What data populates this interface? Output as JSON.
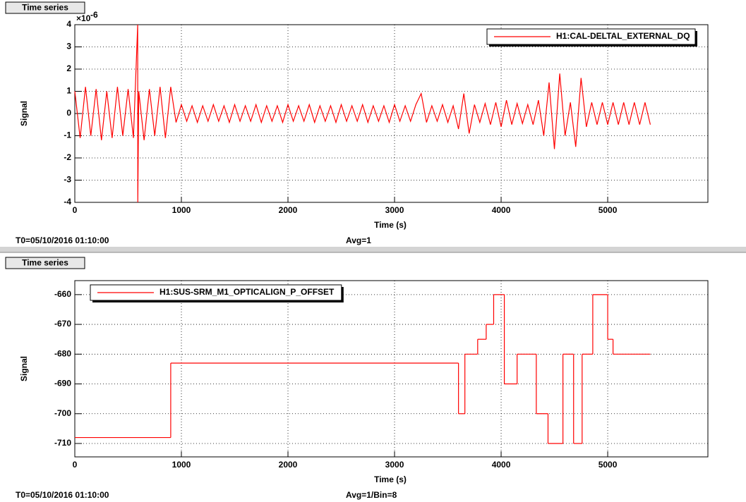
{
  "chart_data": [
    {
      "type": "line",
      "button": "Time series",
      "xlabel": "Time (s)",
      "ylabel": "Signal",
      "y_multiplier": {
        "base": "×10",
        "exponent": "-6"
      },
      "footer_left": "T0=05/10/2016 01:10:00",
      "footer_center": "Avg=1",
      "xlim": [
        0,
        5940
      ],
      "xticks": [
        0,
        1000,
        2000,
        3000,
        4000,
        5000
      ],
      "ylim": [
        -4,
        4
      ],
      "yticks": [
        -4,
        -3,
        -2,
        -1,
        0,
        1,
        2,
        3,
        4
      ],
      "grid": true,
      "legend": "upper right",
      "series": [
        {
          "name": "H1:CAL-DELTAL_EXTERNAL_DQ",
          "color": "#ff0000",
          "x": [
            0,
            50,
            100,
            150,
            200,
            250,
            300,
            350,
            400,
            450,
            500,
            550,
            590,
            591,
            600,
            650,
            700,
            750,
            800,
            850,
            900,
            950,
            1000,
            1050,
            1100,
            1150,
            1200,
            1250,
            1300,
            1350,
            1400,
            1450,
            1500,
            1550,
            1600,
            1650,
            1700,
            1750,
            1800,
            1850,
            1900,
            1950,
            2000,
            2050,
            2100,
            2150,
            2200,
            2250,
            2300,
            2350,
            2400,
            2450,
            2500,
            2550,
            2600,
            2650,
            2700,
            2750,
            2800,
            2850,
            2900,
            2950,
            3000,
            3050,
            3100,
            3150,
            3200,
            3250,
            3300,
            3350,
            3400,
            3450,
            3500,
            3550,
            3600,
            3650,
            3700,
            3750,
            3800,
            3850,
            3900,
            3950,
            4000,
            4050,
            4100,
            4150,
            4200,
            4250,
            4300,
            4350,
            4400,
            4450,
            4500,
            4550,
            4600,
            4650,
            4700,
            4750,
            4800,
            4850,
            4900,
            4950,
            5000,
            5050,
            5100,
            5150,
            5200,
            5250,
            5300,
            5350,
            5400
          ],
          "values": [
            1.0,
            -1.1,
            1.2,
            -1.0,
            1.1,
            -1.2,
            1.0,
            -1.1,
            1.2,
            -1.0,
            1.1,
            -1.1,
            4,
            -4,
            1.0,
            -1.2,
            1.1,
            -1.0,
            1.2,
            -1.1,
            1.2,
            -0.4,
            0.4,
            -0.35,
            0.35,
            -0.4,
            0.35,
            -0.35,
            0.4,
            -0.35,
            0.35,
            -0.4,
            0.4,
            -0.35,
            0.35,
            -0.35,
            0.4,
            -0.4,
            0.35,
            -0.35,
            0.35,
            -0.4,
            0.4,
            -0.35,
            0.35,
            -0.35,
            0.4,
            -0.4,
            0.35,
            -0.35,
            0.35,
            -0.4,
            0.4,
            -0.35,
            0.35,
            -0.35,
            0.4,
            -0.4,
            0.35,
            -0.35,
            0.35,
            -0.4,
            0.4,
            -0.35,
            0.35,
            -0.35,
            0.4,
            0.9,
            -0.4,
            0.35,
            -0.35,
            0.4,
            -0.4,
            0.35,
            -0.7,
            0.9,
            -0.9,
            0.4,
            -0.4,
            0.45,
            -0.5,
            0.5,
            -0.6,
            0.6,
            -0.5,
            0.45,
            -0.45,
            0.4,
            -0.5,
            0.6,
            -1.0,
            1.4,
            -1.6,
            1.8,
            -1.0,
            0.5,
            -1.5,
            1.6,
            -0.6,
            0.5,
            -0.5,
            0.5,
            -0.5,
            0.5,
            -0.5,
            0.5,
            -0.5,
            0.5,
            -0.5,
            0.5,
            -0.5
          ]
        }
      ]
    },
    {
      "type": "step",
      "button": "Time series",
      "xlabel": "Time (s)",
      "ylabel": "Signal",
      "footer_left": "T0=05/10/2016 01:10:00",
      "footer_center": "Avg=1/Bin=8",
      "xlim": [
        0,
        5940
      ],
      "xticks": [
        0,
        1000,
        2000,
        3000,
        4000,
        5000
      ],
      "ylim": [
        -714.5,
        -655.3
      ],
      "yticks": [
        -710,
        -700,
        -690,
        -680,
        -670,
        -660
      ],
      "grid": true,
      "legend": "upper left",
      "series": [
        {
          "name": "H1:SUS-SRM_M1_OPTICALIGN_P_OFFSET",
          "color": "#ff0000",
          "x": [
            0,
            900,
            3600,
            3660,
            3780,
            3860,
            3930,
            4030,
            4150,
            4330,
            4440,
            4580,
            4680,
            4760,
            4860,
            5000,
            5050,
            5400
          ],
          "values": [
            -708,
            -683,
            -700,
            -680,
            -675,
            -670,
            -660,
            -690,
            -680,
            -700,
            -710,
            -680,
            -710,
            -680,
            -660,
            -675,
            -680,
            -680
          ]
        }
      ]
    }
  ]
}
